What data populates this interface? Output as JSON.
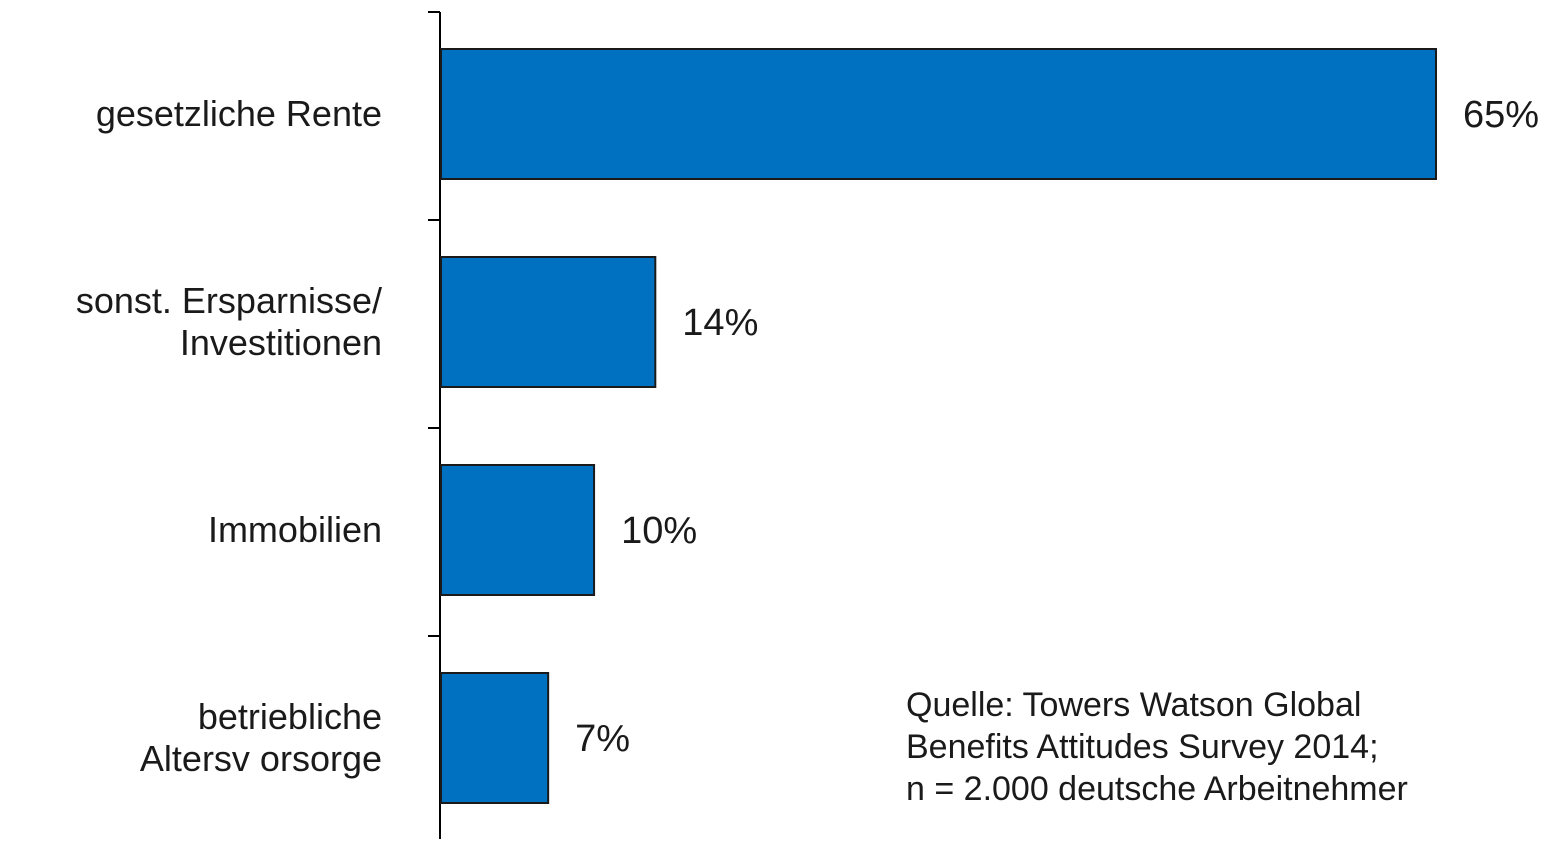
{
  "chart_data": {
    "type": "bar",
    "orientation": "horizontal",
    "categories": [
      [
        "gesetzliche Rente"
      ],
      [
        "sonst. Ersparnisse/",
        "Investitionen"
      ],
      [
        "Immobilien"
      ],
      [
        "betriebliche",
        "Altersv orsorge"
      ]
    ],
    "values": [
      65,
      14,
      10,
      7
    ],
    "value_labels": [
      "65%",
      "14%",
      "10%",
      "7%"
    ],
    "unit": "%",
    "xlim": [
      0,
      65
    ],
    "grid": false,
    "colors": {
      "bar": "#0070C0",
      "bar_stroke": "#1a1a1a",
      "axis": "#000000"
    }
  },
  "source_note": {
    "line1": "Quelle: Towers Watson Global",
    "line2": "Benefits Attitudes Survey 2014;",
    "line3": "n = 2.000 deutsche Arbeitnehmer"
  }
}
